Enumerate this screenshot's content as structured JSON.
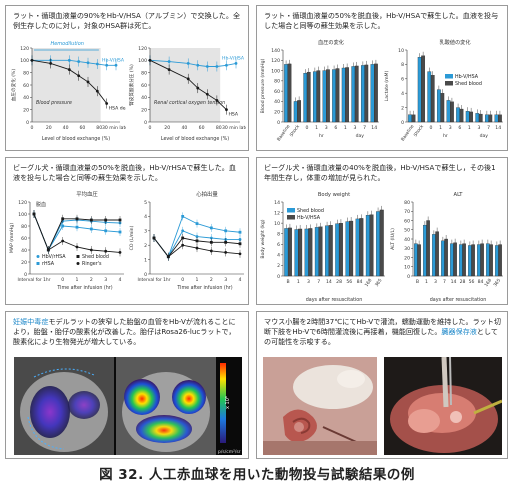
{
  "figure_caption": "図 32. 人工赤血球を用いた動物投与試験結果の例",
  "panel1": {
    "text": "ラット・循環血液量の90%をHb-V/HSA（アルブミン）で交換した。全例生存したのに対し，対象のHSA群は死亡。"
  },
  "panel2": {
    "text": "ラット・循環血液量の50%を脱血後，Hb-V/HSAで蘇生した。血液を投与した場合と同等の蘇生効果を示した。"
  },
  "panel3": {
    "text": "ビーグル犬・循環血液量の50%を脱血後，Hb-V/rHSAで蘇生した。血液を投与した場合と同等の蘇生効果を示した。"
  },
  "panel4": {
    "text": "ビーグル犬・循環血液量の40%を脱血後，Hb-V/HSAで蘇生し，その後1年間生存し，体重の増加が見られた。"
  },
  "panel5": {
    "text_hl": "妊娠中毒症",
    "text": "モデルラットの狭窄した胎盤の血管をHb-Vが流れることにより，胎盤・胎仔の酸素化が改善した。胎仔はRosa26-lucラットで，酸素化により生物発光が増大している。",
    "scale_label": "x 10⁶",
    "unit_label": "p/s/cm²/sr"
  },
  "panel6": {
    "text_a": "マウス小腸を2時間37℃にてHb-Vで灌流，蠕動運動を維持した。ラット切断下肢をHb-Vで6時間灌流後に再接着，機能回復した。",
    "text_hl": "臓器保存液",
    "text_b": "としての可能性を示唆する。"
  },
  "chart_data": [
    {
      "type": "line",
      "id": "90pct-exchange-blood-pressure",
      "annotation_top": "Hemodilution",
      "annotation_note": "Blood pressure",
      "ylabel": "血圧の変化 (%)",
      "xlabel": "Level of blood exchange (%)",
      "x_ticks": [
        "0",
        "20",
        "40",
        "60",
        "80",
        "30 min later"
      ],
      "y_ticks": [
        "0",
        "20",
        "40",
        "60",
        "80",
        "100",
        "120"
      ],
      "ylim": [
        0,
        120
      ],
      "x": [
        0,
        20,
        40,
        50,
        60,
        70,
        80,
        90
      ],
      "series": [
        {
          "name": "Hb-V/HSA",
          "values": [
            100,
            100,
            100,
            98,
            96,
            94,
            92,
            92
          ]
        },
        {
          "name": "HSA death",
          "values": [
            100,
            95,
            85,
            75,
            65,
            50,
            30,
            null
          ]
        }
      ]
    },
    {
      "type": "line",
      "id": "90pct-exchange-oxygen-tension",
      "annotation_note": "Renal cortical oxygen tension",
      "ylabel": "腎皮質酸素分圧 (%)",
      "xlabel": "Level of blood exchange (%)",
      "x_ticks": [
        "0",
        "20",
        "40",
        "60",
        "80",
        "30 min later"
      ],
      "y_ticks": [
        "0",
        "20",
        "40",
        "60",
        "80",
        "100",
        "120"
      ],
      "ylim": [
        0,
        120
      ],
      "x": [
        0,
        20,
        40,
        50,
        60,
        70,
        80,
        90
      ],
      "series": [
        {
          "name": "Hb-V/HSA",
          "values": [
            100,
            98,
            95,
            92,
            90,
            90,
            92,
            95
          ]
        },
        {
          "name": "HSA",
          "values": [
            100,
            85,
            70,
            55,
            45,
            35,
            20,
            null
          ]
        }
      ]
    },
    {
      "type": "bar",
      "id": "rat-50pct-blood-pressure",
      "title": "血圧の変化",
      "ylabel": "Blood pressure (mmHg)",
      "y_ticks": [
        "0",
        "20",
        "40",
        "60",
        "80",
        "100",
        "120",
        "140"
      ],
      "ylim": [
        0,
        140
      ],
      "categories": [
        "Baseline",
        "Shock",
        "0",
        "1",
        "3",
        "6",
        "1",
        "3",
        "7",
        "14"
      ],
      "group_labels": [
        "hr",
        "day"
      ],
      "series": [
        {
          "name": "Hb-V/HSA",
          "values": [
            112,
            40,
            95,
            98,
            100,
            102,
            105,
            108,
            110,
            112
          ]
        },
        {
          "name": "Shed blood",
          "values": [
            113,
            42,
            97,
            100,
            102,
            104,
            106,
            109,
            111,
            113
          ]
        }
      ]
    },
    {
      "type": "bar",
      "id": "rat-50pct-lactate",
      "title": "乳酸値の変化",
      "ylabel": "Lactate (mM)",
      "y_ticks": [
        "0",
        "2",
        "4",
        "6",
        "8",
        "10"
      ],
      "ylim": [
        0,
        10
      ],
      "categories": [
        "Baseline",
        "Shock",
        "0",
        "1",
        "3",
        "6",
        "1",
        "3",
        "7",
        "14"
      ],
      "group_labels": [
        "hr",
        "day"
      ],
      "series": [
        {
          "name": "Hb-V/HSA",
          "values": [
            1.0,
            9.0,
            7.0,
            4.5,
            3.0,
            2.0,
            1.5,
            1.2,
            1.0,
            1.0
          ]
        },
        {
          "name": "Shed blood",
          "values": [
            1.0,
            9.2,
            6.5,
            4.0,
            2.8,
            1.8,
            1.4,
            1.1,
            1.0,
            1.0
          ]
        }
      ]
    },
    {
      "type": "line",
      "id": "dog-50pct-map",
      "title": "平均血圧",
      "annotation": "脱血",
      "ylabel": "MAP (mmHg)",
      "xlabel": "Time after infusion (hr)",
      "x_ticks": [
        "Interval for 1hr",
        "0",
        "1",
        "2",
        "3",
        "4"
      ],
      "y_ticks": [
        "0",
        "20",
        "40",
        "60",
        "80",
        "100",
        "120"
      ],
      "ylim": [
        0,
        120
      ],
      "series": [
        {
          "name": "HbV/rHSA",
          "values": [
            100,
            40,
            88,
            90,
            88,
            86,
            85
          ]
        },
        {
          "name": "rHSA",
          "values": [
            100,
            40,
            80,
            78,
            75,
            72,
            70
          ]
        },
        {
          "name": "Shed blood",
          "values": [
            100,
            40,
            92,
            92,
            90,
            90,
            90
          ]
        },
        {
          "name": "Ringer's",
          "values": [
            100,
            40,
            55,
            45,
            40,
            38,
            36
          ]
        }
      ]
    },
    {
      "type": "line",
      "id": "dog-50pct-cardiac-output",
      "title": "心拍出量",
      "ylabel": "CO (L/min)",
      "xlabel": "Time after infusion (hr)",
      "x_ticks": [
        "Interval for 1hr",
        "0",
        "1",
        "2",
        "3",
        "4"
      ],
      "y_ticks": [
        "0",
        "1",
        "2",
        "3",
        "4",
        "5"
      ],
      "ylim": [
        0,
        5
      ],
      "series": [
        {
          "name": "HbV/rHSA",
          "values": [
            2.5,
            1.2,
            3.0,
            2.6,
            2.5,
            2.4,
            2.4
          ]
        },
        {
          "name": "rHSA",
          "values": [
            2.5,
            1.2,
            4.0,
            3.5,
            3.2,
            3.0,
            2.9
          ]
        },
        {
          "name": "Shed blood",
          "values": [
            2.5,
            1.2,
            2.5,
            2.3,
            2.2,
            2.2,
            2.1
          ]
        },
        {
          "name": "Ringer's",
          "values": [
            2.5,
            1.2,
            2.0,
            1.8,
            1.6,
            1.5,
            1.4
          ]
        }
      ]
    },
    {
      "type": "bar",
      "id": "dog-40pct-body-weight",
      "title": "Body weight",
      "ylabel": "Body weight (kg)",
      "xlabel": "days after resuscitation",
      "x_ticks": [
        "B",
        "1",
        "3",
        "7",
        "14",
        "28",
        "56",
        "84",
        "168",
        "365"
      ],
      "y_ticks": [
        "0",
        "2",
        "4",
        "6",
        "8",
        "10",
        "12",
        "14"
      ],
      "ylim": [
        0,
        14
      ],
      "series": [
        {
          "name": "Shed blood",
          "values": [
            9.0,
            8.8,
            8.9,
            9.2,
            9.5,
            9.9,
            10.3,
            10.8,
            11.5,
            12.2
          ]
        },
        {
          "name": "Hb-V/HSA",
          "values": [
            9.1,
            8.9,
            9.0,
            9.3,
            9.6,
            10.0,
            10.4,
            10.9,
            11.6,
            12.5
          ]
        }
      ]
    },
    {
      "type": "bar",
      "id": "dog-40pct-alt",
      "title": "ALT",
      "ylabel": "ALT (IU/L)",
      "xlabel": "days after resuscitation",
      "x_ticks": [
        "B",
        "1",
        "3",
        "7",
        "14",
        "28",
        "56",
        "84",
        "168",
        "365"
      ],
      "y_ticks": [
        "0",
        "10",
        "20",
        "30",
        "40",
        "50",
        "60",
        "70",
        "80"
      ],
      "ylim": [
        0,
        80
      ],
      "series": [
        {
          "name": "Shed blood",
          "values": [
            35,
            55,
            45,
            38,
            35,
            34,
            33,
            34,
            35,
            33
          ]
        },
        {
          "name": "Hb-V/HSA",
          "values": [
            34,
            60,
            48,
            40,
            36,
            35,
            34,
            35,
            34,
            34
          ]
        }
      ]
    }
  ]
}
